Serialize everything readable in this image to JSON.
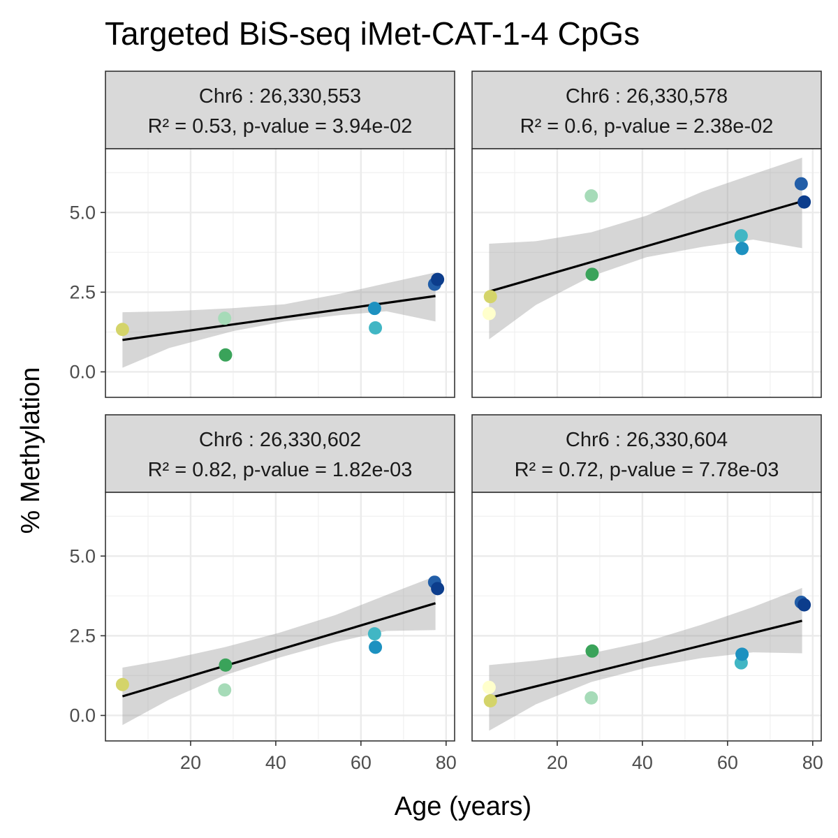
{
  "chart_data": {
    "type": "scatter",
    "title": "Targeted BiS-seq iMet-CAT-1-4 CpGs",
    "xlabel": "Age (years)",
    "ylabel": "% Methylation",
    "xlim": [
      0,
      82
    ],
    "ylim": [
      -0.8,
      7
    ],
    "x_ticks": [
      20,
      40,
      60,
      80
    ],
    "y_ticks": [
      0,
      2.5,
      5
    ],
    "y_tick_labels": [
      "0.0",
      "2.5",
      "5.0"
    ],
    "grid": true,
    "regression": "linear fit with 95% confidence band",
    "ages": [
      4,
      4.3,
      28,
      28.2,
      63.2,
      63.4,
      77.3,
      78
    ],
    "point_colors": [
      "#ffffcc",
      "#d4d46a",
      "#a6dbb8",
      "#3aa35a",
      "#41b6c4",
      "#1d91c0",
      "#225ea8",
      "#0c3d8c"
    ],
    "panels": [
      {
        "label": "Chr6 : 26,330,553",
        "stats": "R² = 0.53, p-value = 3.94e-02",
        "points": [
          [
            4,
            1.33,
            "#d4d46a"
          ],
          [
            28,
            1.68,
            "#a6dbb8"
          ],
          [
            28.2,
            0.53,
            "#3aa35a"
          ],
          [
            63.2,
            1.99,
            "#1d91c0"
          ],
          [
            63.4,
            1.38,
            "#41b6c4"
          ],
          [
            77.3,
            2.75,
            "#225ea8"
          ],
          [
            78,
            2.9,
            "#0c3d8c"
          ]
        ],
        "fit": [
          [
            4,
            1.0
          ],
          [
            77.5,
            2.38
          ]
        ],
        "band": [
          [
            4,
            0.13,
            1.87
          ],
          [
            15,
            0.75,
            1.9
          ],
          [
            30,
            1.28,
            2.0
          ],
          [
            42,
            1.58,
            2.12
          ],
          [
            55,
            1.78,
            2.45
          ],
          [
            66,
            1.9,
            2.78
          ],
          [
            77.5,
            1.58,
            3.12
          ]
        ]
      },
      {
        "label": "Chr6 : 26,330,578",
        "stats": "R² = 0.6, p-value = 2.38e-02",
        "points": [
          [
            4,
            1.83,
            "#ffffcc"
          ],
          [
            4.3,
            2.36,
            "#d4d46a"
          ],
          [
            28,
            5.52,
            "#a6dbb8"
          ],
          [
            28.2,
            3.06,
            "#3aa35a"
          ],
          [
            63.2,
            4.27,
            "#41b6c4"
          ],
          [
            63.4,
            3.87,
            "#1d91c0"
          ],
          [
            77.3,
            5.9,
            "#225ea8"
          ],
          [
            78,
            5.33,
            "#0c3d8c"
          ]
        ],
        "fit": [
          [
            4,
            2.52
          ],
          [
            77.5,
            5.35
          ]
        ],
        "band": [
          [
            4,
            1.02,
            4.02
          ],
          [
            15,
            2.1,
            4.1
          ],
          [
            28,
            3.0,
            4.38
          ],
          [
            41,
            3.6,
            4.9
          ],
          [
            54,
            3.92,
            5.65
          ],
          [
            66,
            4.15,
            6.2
          ],
          [
            77.5,
            3.88,
            6.72
          ]
        ]
      },
      {
        "label": "Chr6 : 26,330,602",
        "stats": "R² = 0.82, p-value = 1.82e-03",
        "points": [
          [
            4,
            0.97,
            "#d4d46a"
          ],
          [
            28,
            0.8,
            "#a6dbb8"
          ],
          [
            28.2,
            1.58,
            "#3aa35a"
          ],
          [
            63.2,
            2.56,
            "#41b6c4"
          ],
          [
            63.4,
            2.14,
            "#1d91c0"
          ],
          [
            77.3,
            4.18,
            "#225ea8"
          ],
          [
            78,
            3.98,
            "#0c3d8c"
          ]
        ],
        "fit": [
          [
            4,
            0.6
          ],
          [
            77.5,
            3.52
          ]
        ],
        "band": [
          [
            4,
            -0.3,
            1.5
          ],
          [
            15,
            0.5,
            1.76
          ],
          [
            28,
            1.26,
            2.14
          ],
          [
            41,
            1.82,
            2.6
          ],
          [
            54,
            2.3,
            3.15
          ],
          [
            66,
            2.65,
            3.78
          ],
          [
            77.5,
            2.68,
            4.37
          ]
        ]
      },
      {
        "label": "Chr6 : 26,330,604",
        "stats": "R² = 0.72, p-value = 7.78e-03",
        "points": [
          [
            4,
            0.88,
            "#ffffcc"
          ],
          [
            4.3,
            0.46,
            "#d4d46a"
          ],
          [
            28,
            0.55,
            "#a6dbb8"
          ],
          [
            28.2,
            2.02,
            "#3aa35a"
          ],
          [
            63.2,
            1.65,
            "#41b6c4"
          ],
          [
            63.4,
            1.92,
            "#1d91c0"
          ],
          [
            77.3,
            3.55,
            "#225ea8"
          ],
          [
            78,
            3.47,
            "#0c3d8c"
          ]
        ],
        "fit": [
          [
            4,
            0.55
          ],
          [
            77.5,
            2.97
          ]
        ],
        "band": [
          [
            4,
            -0.48,
            1.58
          ],
          [
            15,
            0.35,
            1.72
          ],
          [
            28,
            1.05,
            1.95
          ],
          [
            41,
            1.5,
            2.32
          ],
          [
            54,
            1.8,
            2.85
          ],
          [
            66,
            1.98,
            3.4
          ],
          [
            77.5,
            1.95,
            4.0
          ]
        ]
      }
    ]
  }
}
